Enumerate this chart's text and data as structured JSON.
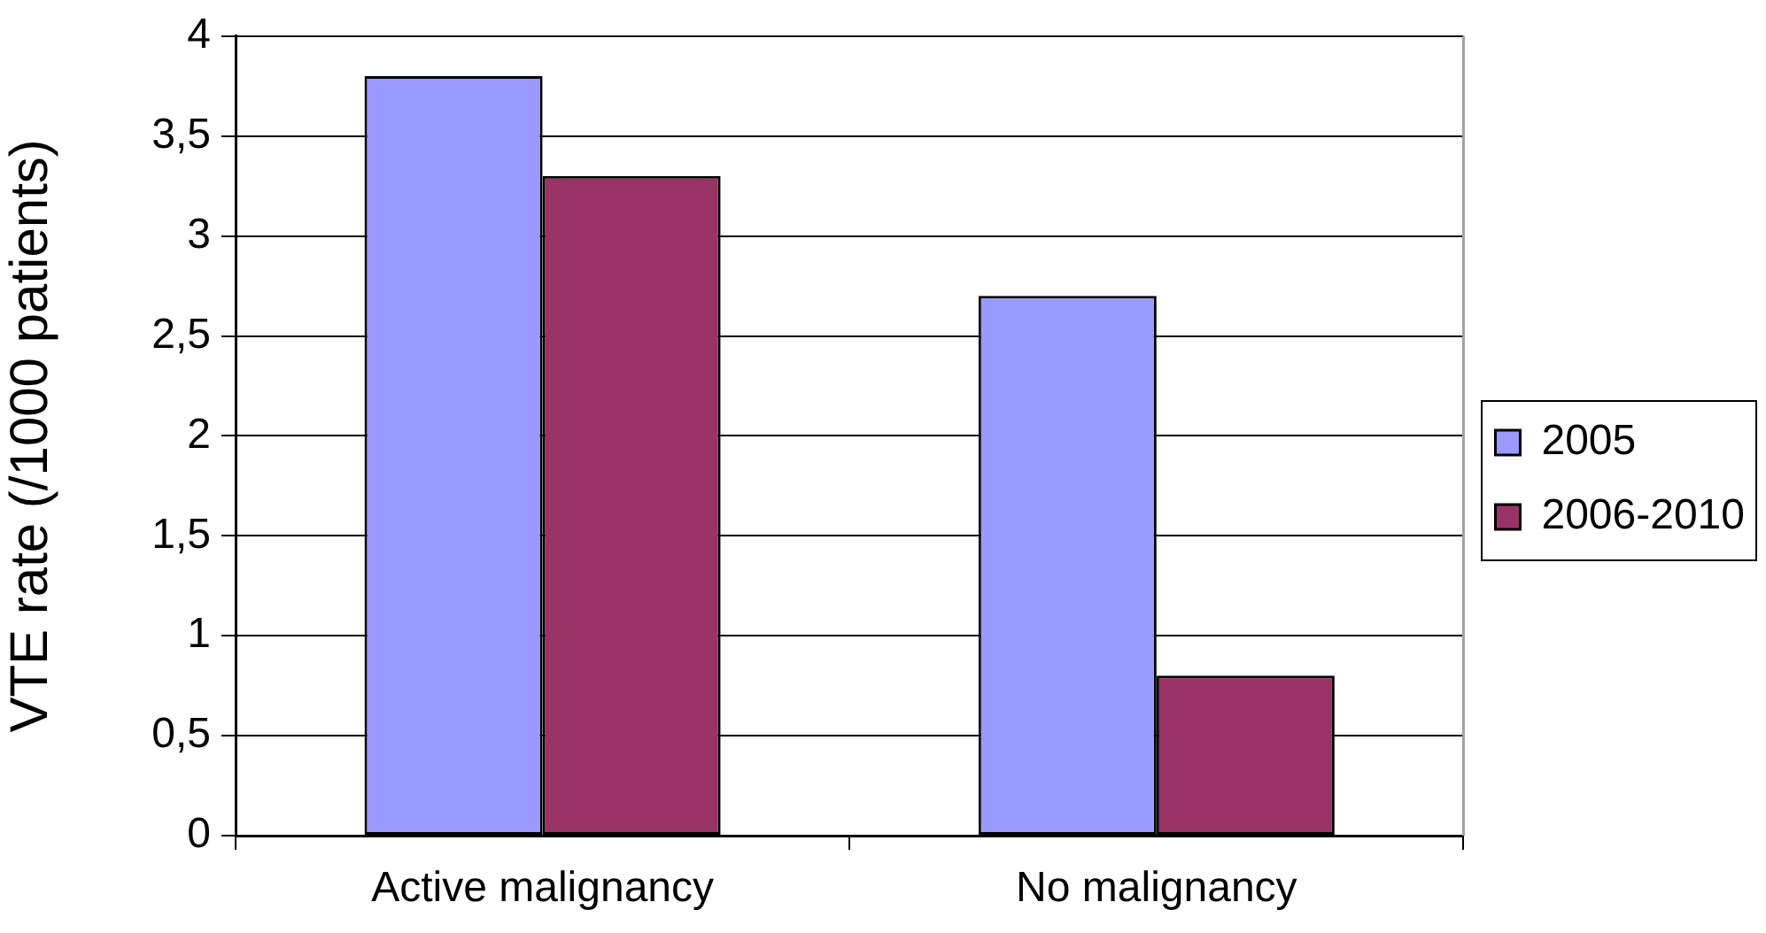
{
  "chart_data": {
    "type": "bar",
    "ylabel": "VTE rate (/1000 patients)",
    "categories": [
      "Active malignancy",
      "No malignancy"
    ],
    "series": [
      {
        "name": "2005",
        "color": "#9999ff",
        "values": [
          3.8,
          2.7
        ]
      },
      {
        "name": "2006-2010",
        "color": "#993366",
        "values": [
          3.3,
          0.8
        ]
      }
    ],
    "ylim": [
      0,
      4
    ],
    "yticks": [
      0,
      {
        "value": 0.5,
        "label": "0,5"
      },
      1,
      {
        "value": 1.5,
        "label": "1,5"
      },
      2,
      {
        "value": 2.5,
        "label": "2,5"
      },
      3,
      {
        "value": 3.5,
        "label": "3,5"
      },
      4
    ],
    "grid": "y",
    "legend": "right"
  }
}
